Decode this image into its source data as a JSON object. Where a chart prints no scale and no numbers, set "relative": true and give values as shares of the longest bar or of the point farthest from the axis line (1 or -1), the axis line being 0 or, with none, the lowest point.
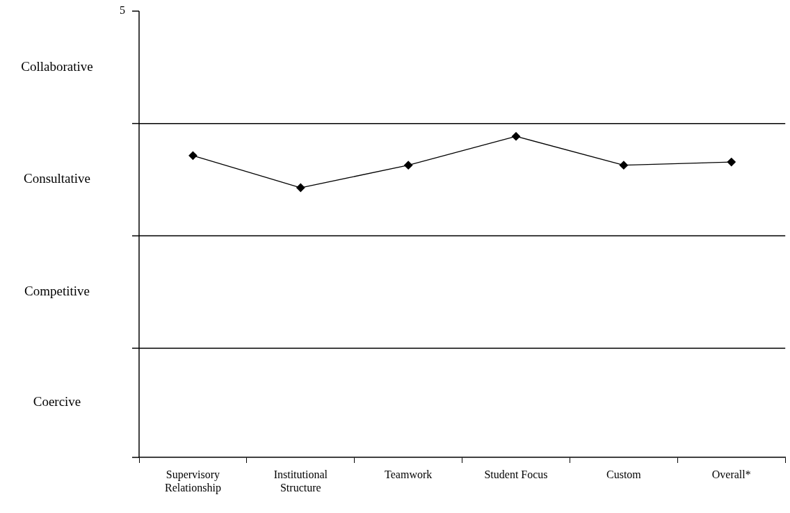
{
  "chart_data": {
    "type": "line",
    "relative": true,
    "categories": [
      "Supervisory Relationship",
      "Institutional Structure",
      "Teamwork",
      "Student Focus",
      "Custom",
      "Overall*"
    ],
    "series": [
      {
        "color": "#000000",
        "values": [
          0.94,
          0.84,
          0.91,
          1,
          0.91,
          0.92
        ]
      }
    ],
    "ref_lines": [
      {
        "axis": "y",
        "value": 1.04
      },
      {
        "axis": "y",
        "value": 0.69
      },
      {
        "axis": "y",
        "value": 0.34
      }
    ],
    "annotations": [
      "5",
      "Collaborative",
      "Consultative",
      "Competitive",
      "Coercive"
    ],
    "marker": "diamond",
    "line_style": "solid"
  }
}
